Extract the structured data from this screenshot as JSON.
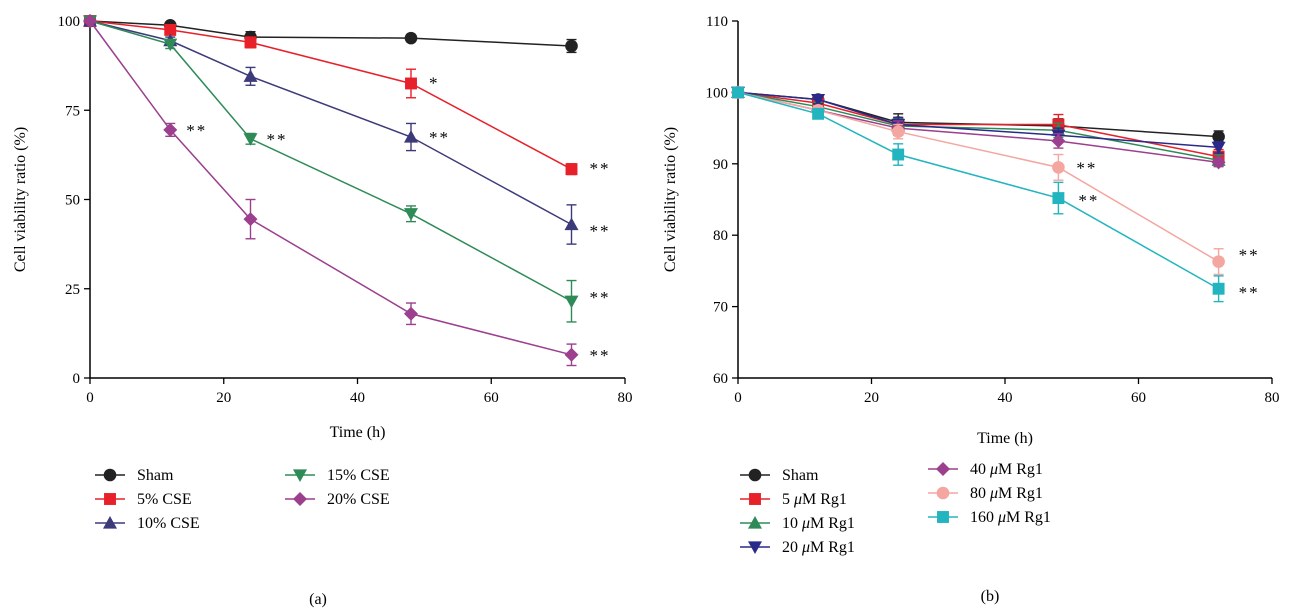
{
  "figure": {
    "panels": [
      {
        "id": "a",
        "caption": "(a)",
        "ylabel": "Cell viability ratio (%)",
        "xlabel": "Time (h)"
      },
      {
        "id": "b",
        "caption": "(b)",
        "ylabel": "Cell viability ratio (%)",
        "xlabel": "Time (h)"
      }
    ]
  },
  "chart_data": [
    {
      "type": "line",
      "title": "",
      "xlabel": "Time (h)",
      "ylabel": "Cell viability ratio (%)",
      "xlim": [
        0,
        80
      ],
      "ylim": [
        0,
        100
      ],
      "xticks": [
        0,
        20,
        40,
        60,
        80
      ],
      "yticks": [
        0,
        25,
        50,
        75,
        100
      ],
      "legend_position": "bottom",
      "grid": false,
      "x": [
        0,
        12,
        24,
        48,
        72
      ],
      "series": [
        {
          "name": "Sham",
          "color": "#222222",
          "marker": "circle",
          "values": [
            100,
            98.8,
            95.5,
            95.2,
            93
          ],
          "errors": [
            0,
            0.8,
            1.5,
            0.8,
            1.8
          ],
          "sig": [
            null,
            null,
            null,
            null,
            null
          ]
        },
        {
          "name": "5% CSE",
          "color": "#e8202a",
          "marker": "square",
          "values": [
            100,
            97.5,
            94,
            82.5,
            58.5
          ],
          "errors": [
            0,
            1.2,
            1.5,
            4,
            1.5
          ],
          "sig": [
            null,
            null,
            null,
            "*",
            "**"
          ]
        },
        {
          "name": "10% CSE",
          "color": "#3d3a7a",
          "marker": "triangle-up",
          "values": [
            100,
            94.5,
            84.5,
            67.5,
            43
          ],
          "errors": [
            0,
            1,
            2.5,
            3.8,
            5.5
          ],
          "sig": [
            null,
            null,
            null,
            "**",
            "**"
          ]
        },
        {
          "name": "15% CSE",
          "color": "#2e8b57",
          "marker": "triangle-down",
          "values": [
            100,
            93.5,
            67,
            46,
            21.5
          ],
          "errors": [
            0,
            1.2,
            1.5,
            2.2,
            5.8
          ],
          "sig": [
            null,
            null,
            "**",
            null,
            "**"
          ]
        },
        {
          "name": "20% CSE",
          "color": "#9b3f8e",
          "marker": "diamond",
          "values": [
            100,
            69.5,
            44.5,
            18,
            6.5
          ],
          "errors": [
            0,
            1.8,
            5.5,
            3,
            3
          ],
          "sig": [
            null,
            "**",
            null,
            null,
            "**"
          ]
        }
      ]
    },
    {
      "type": "line",
      "title": "",
      "xlabel": "Time (h)",
      "ylabel": "Cell viability ratio (%)",
      "xlim": [
        0,
        80
      ],
      "ylim": [
        60,
        110
      ],
      "xticks": [
        0,
        20,
        40,
        60,
        80
      ],
      "yticks": [
        60,
        70,
        80,
        90,
        100,
        110
      ],
      "legend_position": "bottom",
      "grid": false,
      "x": [
        0,
        12,
        24,
        48,
        72
      ],
      "series": [
        {
          "name": "Sham",
          "prefix": "",
          "unit": "",
          "color": "#222222",
          "marker": "circle",
          "values": [
            100,
            99,
            95.8,
            95.3,
            93.8
          ],
          "errors": [
            0,
            0.5,
            1.2,
            1.0,
            0.8
          ],
          "sig": [
            null,
            null,
            null,
            null,
            null
          ]
        },
        {
          "name": "5 μM Rg1",
          "prefix": "5 ",
          "unit": "Rg1",
          "color": "#e8202a",
          "marker": "square",
          "values": [
            100,
            98.5,
            95.5,
            95.5,
            91
          ],
          "errors": [
            0,
            0.6,
            1.0,
            1.4,
            1.0
          ],
          "sig": [
            null,
            null,
            null,
            null,
            null
          ]
        },
        {
          "name": "10 μM Rg1",
          "prefix": "10 ",
          "unit": "Rg1",
          "color": "#2e8b57",
          "marker": "triangle-up",
          "values": [
            100,
            98,
            95.3,
            94.7,
            90.5
          ],
          "errors": [
            0,
            0.6,
            1.0,
            1.0,
            0.8
          ],
          "sig": [
            null,
            null,
            null,
            null,
            null
          ]
        },
        {
          "name": "20 μM Rg1",
          "prefix": "20 ",
          "unit": "Rg1",
          "color": "#2a2a8a",
          "marker": "triangle-down",
          "values": [
            100,
            99,
            95.5,
            94,
            92.3
          ],
          "errors": [
            0,
            0.6,
            1.0,
            1.0,
            0.8
          ],
          "sig": [
            null,
            null,
            null,
            null,
            null
          ]
        },
        {
          "name": "40 μM Rg1",
          "prefix": "40 ",
          "unit": "Rg1",
          "color": "#9b3f8e",
          "marker": "diamond",
          "values": [
            100,
            97.5,
            95,
            93.2,
            90.2
          ],
          "errors": [
            0,
            0.6,
            1.0,
            1.0,
            0.6
          ],
          "sig": [
            null,
            null,
            null,
            null,
            null
          ]
        },
        {
          "name": "80 μM Rg1",
          "prefix": "80 ",
          "unit": "Rg1",
          "color": "#f4a6a0",
          "marker": "circle",
          "values": [
            100,
            97.5,
            94.5,
            89.5,
            76.3
          ],
          "errors": [
            0,
            0.6,
            1.0,
            1.8,
            1.8
          ],
          "sig": [
            null,
            null,
            null,
            "**",
            "**"
          ]
        },
        {
          "name": "160 μM Rg1",
          "prefix": "160 ",
          "unit": "Rg1",
          "color": "#22b5bf",
          "marker": "square",
          "values": [
            100,
            97,
            91.3,
            85.2,
            72.5
          ],
          "errors": [
            0,
            0.5,
            1.5,
            2.2,
            1.8
          ],
          "sig": [
            null,
            null,
            null,
            "**",
            "**"
          ]
        }
      ]
    }
  ]
}
